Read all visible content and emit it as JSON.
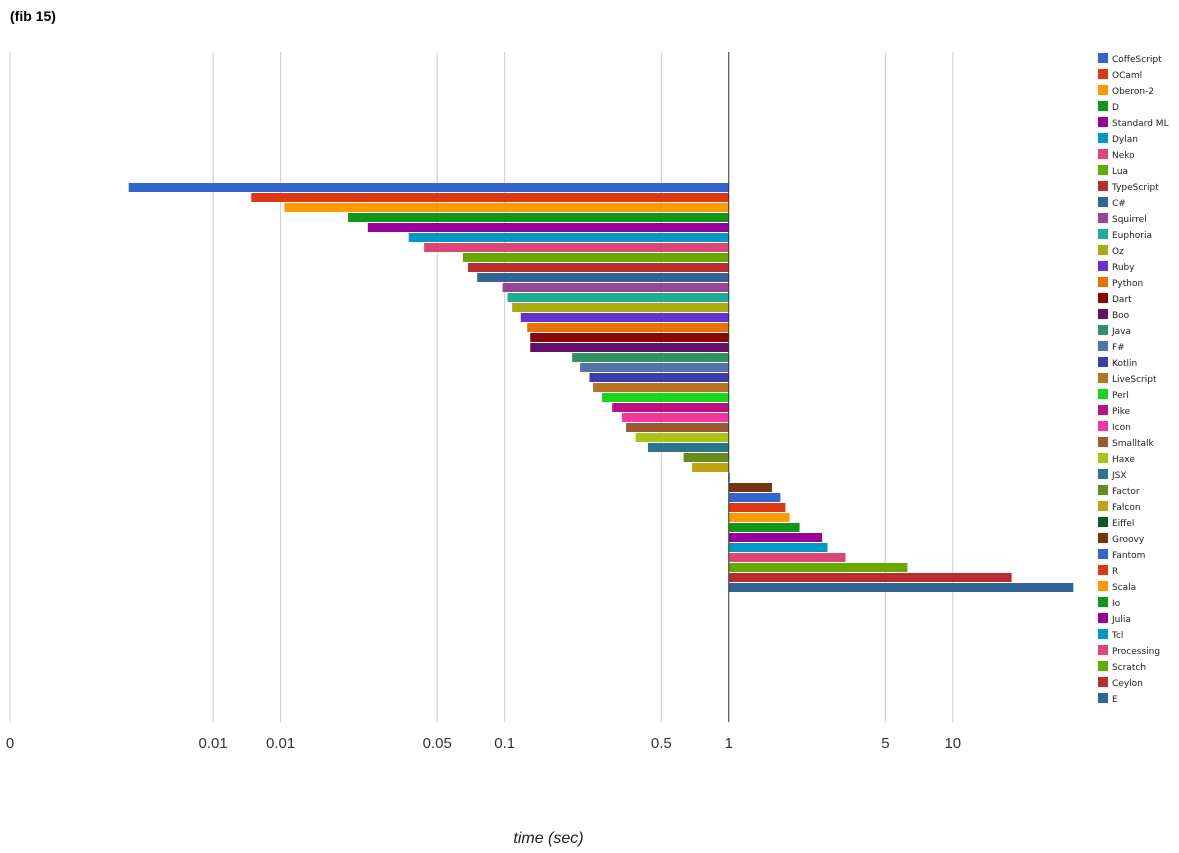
{
  "chart_data": {
    "type": "bar",
    "orientation": "horizontal",
    "title": "(fib 15)",
    "xlabel": "time (sec)",
    "ylabel": "",
    "x_scale": "log",
    "xlim": [
      0.00062,
      44
    ],
    "baseline": 1,
    "grid": true,
    "legend_position": "right",
    "ticks": [
      {
        "label": "0",
        "value": 0.00062
      },
      {
        "label": "0.01",
        "value": 0.005
      },
      {
        "label": "0.01",
        "value": 0.01
      },
      {
        "label": "0.05",
        "value": 0.05
      },
      {
        "label": "0.1",
        "value": 0.1
      },
      {
        "label": "0.5",
        "value": 0.5
      },
      {
        "label": "1",
        "value": 1
      },
      {
        "label": "5",
        "value": 5
      },
      {
        "label": "10",
        "value": 10
      }
    ],
    "series": [
      {
        "name": "CoffeScript",
        "value": 0.0021,
        "color": "#3366cc"
      },
      {
        "name": "OCaml",
        "value": 0.0074,
        "color": "#dc3912"
      },
      {
        "name": "Oberon-2",
        "value": 0.0104,
        "color": "#ff9900"
      },
      {
        "name": "D",
        "value": 0.02,
        "color": "#109618"
      },
      {
        "name": "Standard ML",
        "value": 0.0245,
        "color": "#990099"
      },
      {
        "name": "Dylan",
        "value": 0.0373,
        "color": "#0099c6"
      },
      {
        "name": "Neko",
        "value": 0.0437,
        "color": "#dd4477"
      },
      {
        "name": "Lua",
        "value": 0.0651,
        "color": "#66aa00"
      },
      {
        "name": "TypeScript",
        "value": 0.0686,
        "color": "#b82e2e"
      },
      {
        "name": "C#",
        "value": 0.0754,
        "color": "#316395"
      },
      {
        "name": "Squirrel",
        "value": 0.0979,
        "color": "#994499"
      },
      {
        "name": "Euphoria",
        "value": 0.103,
        "color": "#22aa99"
      },
      {
        "name": "Oz",
        "value": 0.108,
        "color": "#aaaa11"
      },
      {
        "name": "Ruby",
        "value": 0.118,
        "color": "#6633cc"
      },
      {
        "name": "Python",
        "value": 0.126,
        "color": "#e67300"
      },
      {
        "name": "Dart",
        "value": 0.13,
        "color": "#8b0707"
      },
      {
        "name": "Boo",
        "value": 0.13,
        "color": "#651067"
      },
      {
        "name": "Java",
        "value": 0.2,
        "color": "#329262"
      },
      {
        "name": "F#",
        "value": 0.217,
        "color": "#5574a6"
      },
      {
        "name": "Kotlin",
        "value": 0.239,
        "color": "#3b3eac"
      },
      {
        "name": "LiveScript",
        "value": 0.248,
        "color": "#b77322"
      },
      {
        "name": "Perl",
        "value": 0.272,
        "color": "#16d620"
      },
      {
        "name": "Pike",
        "value": 0.302,
        "color": "#b91383"
      },
      {
        "name": "Icon",
        "value": 0.334,
        "color": "#f4359e"
      },
      {
        "name": "Smalltalk",
        "value": 0.348,
        "color": "#9c5935"
      },
      {
        "name": "Haxe",
        "value": 0.384,
        "color": "#a9c413"
      },
      {
        "name": "JSX",
        "value": 0.436,
        "color": "#2a778d"
      },
      {
        "name": "Factor",
        "value": 0.629,
        "color": "#668d1c"
      },
      {
        "name": "Falcon",
        "value": 0.686,
        "color": "#bea413"
      },
      {
        "name": "Eiffel",
        "value": 1.01,
        "color": "#0c5922"
      },
      {
        "name": "Groovy",
        "value": 1.56,
        "color": "#743411"
      },
      {
        "name": "Fantom",
        "value": 1.7,
        "color": "#3366cc"
      },
      {
        "name": "R",
        "value": 1.79,
        "color": "#dc3912"
      },
      {
        "name": "Scala",
        "value": 1.87,
        "color": "#ff9900"
      },
      {
        "name": "Io",
        "value": 2.07,
        "color": "#109618"
      },
      {
        "name": "Julia",
        "value": 2.61,
        "color": "#990099"
      },
      {
        "name": "Tcl",
        "value": 2.76,
        "color": "#0099c6"
      },
      {
        "name": "Processing",
        "value": 3.32,
        "color": "#dd4477"
      },
      {
        "name": "Scratch",
        "value": 6.27,
        "color": "#66aa00"
      },
      {
        "name": "Ceylon",
        "value": 18.3,
        "color": "#b82e2e"
      },
      {
        "name": "E",
        "value": 34.5,
        "color": "#316395"
      }
    ]
  }
}
